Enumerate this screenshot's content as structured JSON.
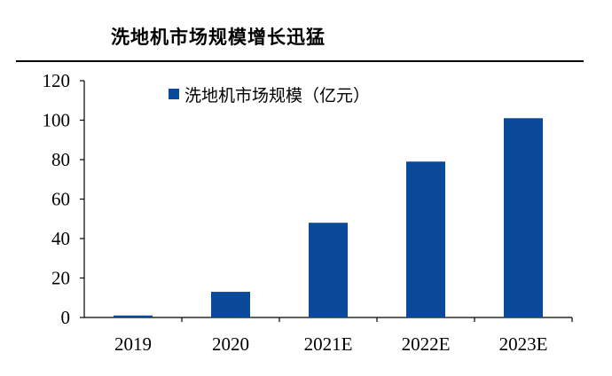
{
  "title": "洗地机市场规模增长迅猛",
  "chart_data": {
    "type": "bar",
    "categories": [
      "2019",
      "2020",
      "2021E",
      "2022E",
      "2023E"
    ],
    "series": [
      {
        "name": "洗地机市场规模（亿元）",
        "values": [
          1,
          13,
          48,
          79,
          101
        ],
        "color": "#0b4a9a"
      }
    ],
    "ylim": [
      0,
      120
    ],
    "yticks": [
      0,
      20,
      40,
      60,
      80,
      100,
      120
    ],
    "grid": false,
    "legend_position": "top-left"
  }
}
